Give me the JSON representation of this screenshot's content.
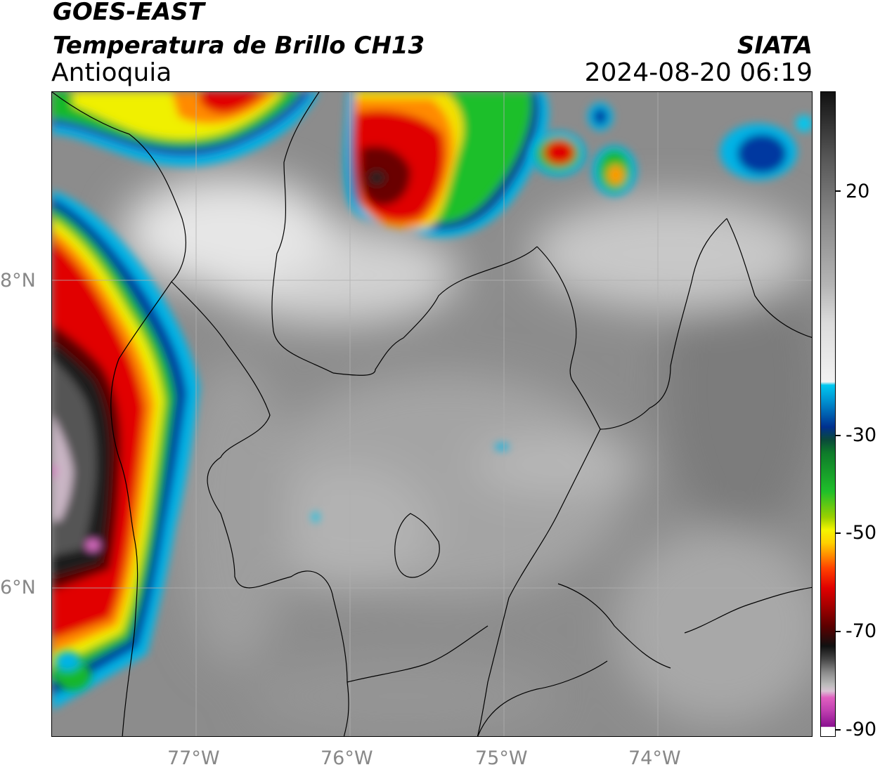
{
  "header": {
    "satellite": "GOES-EAST",
    "product": "Temperatura de Brillo CH13",
    "region": "Antioquia",
    "source": "SIATA",
    "datetime": "2024-08-20 06:19"
  },
  "map": {
    "lat_labels": [
      "8°N",
      "6°N"
    ],
    "lon_labels": [
      "77°W",
      "76°W",
      "75°W",
      "74°W"
    ],
    "grid": true
  },
  "colorbar": {
    "labels": [
      "20",
      "-30",
      "-50",
      "-70",
      "-90"
    ],
    "units": "",
    "colors": {
      "warm_gray": "#8a8a8a",
      "cold_white": "#f2f2f2",
      "cyan": "#00c8f0",
      "blue": "#00308f",
      "green": "#1fbf2a",
      "yellow": "#f5f500",
      "orange": "#ff8a00",
      "red": "#e00000",
      "dark_red": "#5a0000",
      "black": "#101010",
      "pink": "#e060c0",
      "purple": "#8a1090"
    }
  }
}
